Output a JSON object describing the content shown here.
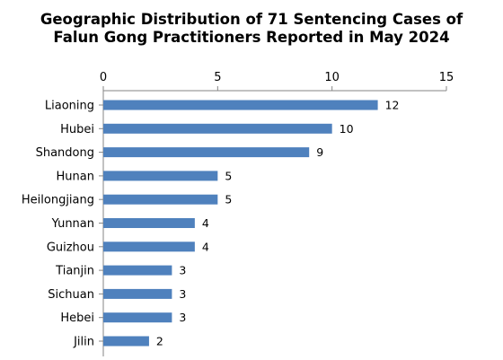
{
  "chart_data": {
    "type": "bar",
    "orientation": "horizontal",
    "title_lines": [
      "Geographic Distribution of 71 Sentencing Cases of",
      "Falun Gong Practitioners Reported in May 2024"
    ],
    "categories": [
      "Liaoning",
      "Hubei",
      "Shandong",
      "Hunan",
      "Heilongjiang",
      "Yunnan",
      "Guizhou",
      "Tianjin",
      "Sichuan",
      "Hebei",
      "Jilin"
    ],
    "values": [
      12,
      10,
      9,
      5,
      5,
      4,
      4,
      3,
      3,
      3,
      2
    ],
    "x_ticks": [
      0,
      5,
      10,
      15
    ],
    "xlim": [
      0,
      15
    ],
    "x_axis_position": "top",
    "grid": false,
    "legend": "none",
    "data_labels": true,
    "bar_color": "#4f81bd",
    "axis_color": "#868686"
  }
}
